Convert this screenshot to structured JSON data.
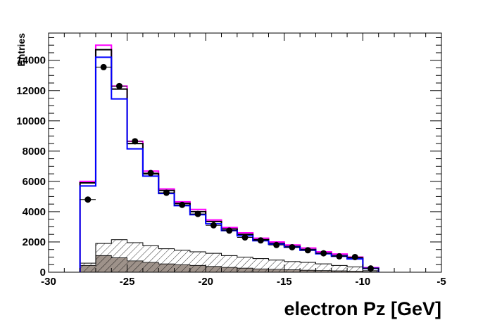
{
  "chart_data": {
    "type": "histogram",
    "xlabel": "electron Pz [GeV]",
    "ylabel": "Entries",
    "xlim": [
      -30,
      -5
    ],
    "ylim": [
      0,
      15800
    ],
    "x_ticks": [
      -30,
      -25,
      -20,
      -15,
      -10,
      -5
    ],
    "x_tick_labels": [
      "-30",
      "-25",
      "-20",
      "-15",
      "-10",
      "-5"
    ],
    "y_ticks": [
      0,
      2000,
      4000,
      6000,
      8000,
      10000,
      12000,
      14000
    ],
    "y_tick_labels": [
      "0",
      "2000",
      "4000",
      "6000",
      "8000",
      "10000",
      "12000",
      "14000"
    ],
    "grid": false,
    "bin_edges": [
      -28,
      -27,
      -26,
      -25,
      -24,
      -23,
      -22,
      -21,
      -20,
      -19,
      -18,
      -17,
      -16,
      -15,
      -14,
      -13,
      -12,
      -11,
      -10,
      -9
    ],
    "series": [
      {
        "kind": "step",
        "color": "#ff00ff",
        "values": [
          6000,
          15000,
          12300,
          8650,
          6680,
          5500,
          4650,
          4150,
          3450,
          2950,
          2600,
          2250,
          2000,
          1800,
          1600,
          1350,
          1200,
          1000,
          300
        ]
      },
      {
        "kind": "step",
        "color": "#000000",
        "values": [
          5900,
          14700,
          12100,
          8500,
          6500,
          5400,
          4550,
          4000,
          3350,
          2850,
          2500,
          2150,
          1900,
          1700,
          1500,
          1250,
          1100,
          920,
          260
        ]
      },
      {
        "kind": "step",
        "color": "#0000ff",
        "values": [
          5700,
          14200,
          11450,
          8150,
          6350,
          5200,
          4400,
          3800,
          3200,
          2750,
          2400,
          2080,
          1850,
          1650,
          1450,
          1220,
          1050,
          880,
          250
        ]
      },
      {
        "kind": "hatched",
        "color": "#000000",
        "values": [
          600,
          1900,
          2150,
          1950,
          1750,
          1550,
          1450,
          1350,
          1250,
          1100,
          1000,
          900,
          800,
          700,
          650,
          550,
          450,
          350,
          100
        ]
      },
      {
        "kind": "filled",
        "color": "#9e928a",
        "values": [
          450,
          1100,
          950,
          750,
          650,
          550,
          500,
          450,
          380,
          320,
          270,
          220,
          190,
          160,
          130,
          110,
          90,
          70,
          20
        ]
      },
      {
        "kind": "points",
        "color": "#000000",
        "x": [
          -27.5,
          -26.5,
          -25.5,
          -24.5,
          -23.5,
          -22.5,
          -21.5,
          -20.5,
          -19.5,
          -18.5,
          -17.5,
          -16.5,
          -15.5,
          -14.5,
          -13.5,
          -12.5,
          -11.5,
          -10.5,
          -9.5
        ],
        "values": [
          4800,
          13550,
          12300,
          8650,
          6550,
          5250,
          4450,
          3850,
          3100,
          2750,
          2300,
          2100,
          1800,
          1650,
          1450,
          1250,
          1050,
          1000,
          250
        ],
        "errors": [
          70,
          116,
          111,
          93,
          81,
          72,
          67,
          62,
          56,
          52,
          48,
          46,
          42,
          41,
          38,
          35,
          32,
          32,
          16
        ]
      }
    ]
  }
}
